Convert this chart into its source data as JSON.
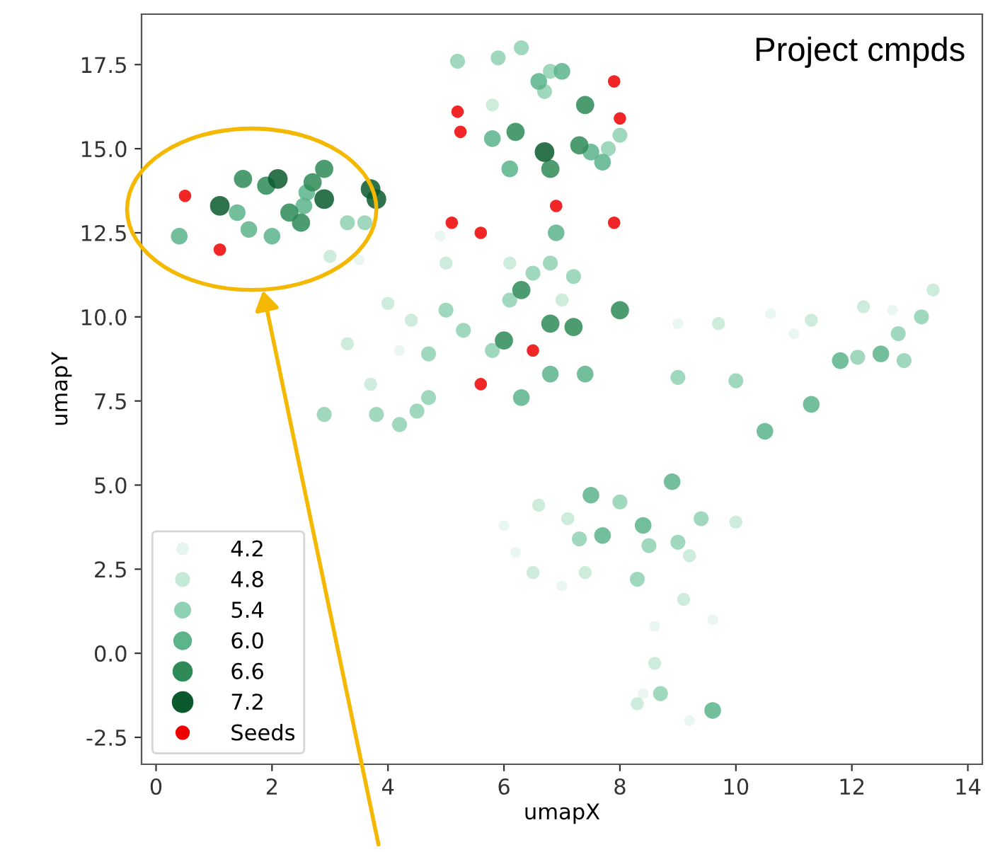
{
  "chart_data": {
    "type": "scatter",
    "xlabel": "umapX",
    "ylabel": "umapY",
    "xlim": [
      -0.25,
      14.25
    ],
    "ylim": [
      -3.3,
      19.0
    ],
    "xticks": [
      0,
      2,
      4,
      6,
      8,
      10,
      12,
      14
    ],
    "yticks": [
      -2.5,
      {
        "value": 0,
        "label": "0.0"
      },
      2.5,
      {
        "value": 5,
        "label": "5.0"
      },
      7.5,
      {
        "value": 10,
        "label": "10.0"
      },
      12.5,
      {
        "value": 15,
        "label": "15.0"
      },
      17.5
    ],
    "grid": false,
    "legend": "bottom left",
    "marker": "circle",
    "annotations": [
      "Project cmpds"
    ],
    "series": [
      {
        "name": "4.2",
        "color": "#e5f5ee",
        "x": [
          4.9,
          3.5,
          9.0,
          10.6,
          6.2,
          6.0,
          7.0,
          9.6,
          8.4,
          9.2,
          8.6,
          12.7,
          11.0,
          4.2
        ],
        "values": [
          12.4,
          11.7,
          9.8,
          10.1,
          3.0,
          3.8,
          2.0,
          1.0,
          -1.2,
          -2.0,
          0.8,
          10.2,
          9.5,
          9.0
        ]
      },
      {
        "name": "4.8",
        "color": "#c4e9d6",
        "x": [
          3.0,
          4.0,
          4.4,
          3.7,
          3.3,
          5.0,
          7.0,
          9.7,
          11.3,
          12.2,
          13.4,
          7.1,
          6.6,
          9.1,
          8.6,
          8.3,
          10.0,
          6.5,
          9.2,
          5.8,
          7.4,
          6.1
        ],
        "values": [
          11.8,
          10.4,
          9.9,
          8.0,
          9.2,
          11.6,
          10.5,
          9.8,
          9.9,
          10.3,
          10.8,
          4.0,
          4.4,
          1.6,
          -0.3,
          -1.5,
          3.9,
          2.4,
          2.9,
          16.3,
          2.4,
          11.6
        ]
      },
      {
        "name": "5.4",
        "color": "#8fd1b3",
        "x": [
          3.3,
          3.6,
          6.3,
          6.8,
          5.9,
          5.2,
          6.7,
          8.0,
          7.8,
          6.1,
          6.5,
          6.8,
          7.2,
          5.8,
          5.3,
          4.7,
          4.2,
          4.5,
          3.8,
          2.9,
          5.0,
          9.0,
          10.0,
          12.1,
          13.2,
          12.8,
          8.0,
          8.5,
          8.3,
          9.0,
          7.3,
          9.4,
          8.7,
          4.7,
          12.9
        ],
        "values": [
          12.8,
          12.8,
          18.0,
          17.3,
          17.7,
          17.6,
          16.7,
          15.4,
          15.0,
          10.5,
          11.3,
          11.6,
          11.2,
          9.0,
          9.6,
          8.9,
          6.8,
          7.2,
          7.1,
          7.1,
          10.2,
          8.2,
          8.1,
          8.8,
          10.0,
          9.5,
          4.5,
          3.2,
          2.2,
          3.3,
          3.4,
          4.0,
          -1.2,
          7.6,
          8.7
        ]
      },
      {
        "name": "6.0",
        "color": "#5bb48a",
        "x": [
          0.4,
          1.6,
          2.0,
          1.4,
          2.6,
          2.55,
          6.1,
          7.5,
          7.0,
          6.6,
          6.9,
          7.7,
          5.8,
          10.5,
          11.8,
          9.6,
          8.9,
          7.5,
          7.7,
          6.3,
          6.8,
          7.4,
          11.3,
          12.5,
          8.4
        ],
        "values": [
          12.4,
          12.6,
          12.4,
          13.1,
          13.7,
          13.3,
          14.4,
          14.9,
          17.3,
          17.0,
          12.5,
          14.6,
          15.3,
          6.6,
          8.7,
          -1.7,
          5.1,
          4.7,
          3.5,
          7.6,
          8.3,
          8.3,
          7.4,
          8.9,
          3.8
        ]
      },
      {
        "name": "6.6",
        "color": "#2e8b57",
        "x": [
          1.5,
          1.9,
          2.7,
          2.9,
          2.3,
          2.5,
          6.8,
          7.3,
          7.4,
          6.2,
          6.8,
          7.2,
          8.0,
          6.0,
          6.3
        ],
        "values": [
          14.1,
          13.9,
          14.0,
          14.4,
          13.1,
          12.8,
          14.4,
          15.1,
          16.3,
          15.5,
          9.8,
          9.7,
          10.2,
          9.3,
          10.8
        ]
      },
      {
        "name": "7.2",
        "color": "#0b5a2e",
        "x": [
          1.1,
          2.9,
          3.7,
          3.8,
          2.1,
          6.7
        ],
        "values": [
          13.3,
          13.5,
          13.8,
          13.5,
          14.1,
          14.9
        ]
      },
      {
        "name": "Seeds",
        "color": "#ee0000",
        "x": [
          0.5,
          1.1,
          5.2,
          5.25,
          5.1,
          5.6,
          5.6,
          6.5,
          6.9,
          7.9,
          8.0,
          7.9
        ],
        "values": [
          13.6,
          12.0,
          16.1,
          15.5,
          12.8,
          12.5,
          8.0,
          9.0,
          13.3,
          17.0,
          15.9,
          12.8
        ]
      }
    ]
  }
}
